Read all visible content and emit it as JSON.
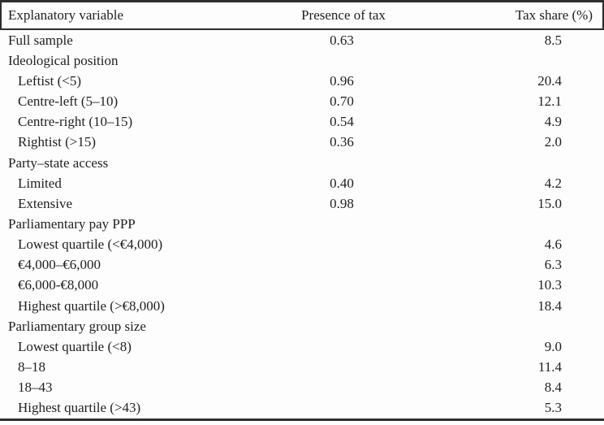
{
  "table": {
    "columns": [
      {
        "label": "Explanatory variable",
        "align": "left"
      },
      {
        "label": "Presence of tax",
        "align": "center"
      },
      {
        "label": "Tax share (%)",
        "align": "right"
      }
    ],
    "rows": [
      {
        "label": "Full sample",
        "indent": false,
        "presence": "0.63",
        "share": "8.5"
      },
      {
        "label": "Ideological position",
        "indent": false,
        "presence": "",
        "share": ""
      },
      {
        "label": "Leftist (<5)",
        "indent": true,
        "presence": "0.96",
        "share": "20.4"
      },
      {
        "label": "Centre-left (5–10)",
        "indent": true,
        "presence": "0.70",
        "share": "12.1"
      },
      {
        "label": "Centre-right (10–15)",
        "indent": true,
        "presence": "0.54",
        "share": "4.9"
      },
      {
        "label": "Rightist (>15)",
        "indent": true,
        "presence": "0.36",
        "share": "2.0"
      },
      {
        "label": "Party–state access",
        "indent": false,
        "presence": "",
        "share": ""
      },
      {
        "label": "Limited",
        "indent": true,
        "presence": "0.40",
        "share": "4.2"
      },
      {
        "label": "Extensive",
        "indent": true,
        "presence": "0.98",
        "share": "15.0"
      },
      {
        "label": "Parliamentary pay PPP",
        "indent": false,
        "presence": "",
        "share": ""
      },
      {
        "label": "Lowest quartile (<€4,000)",
        "indent": true,
        "presence": "",
        "share": "4.6"
      },
      {
        "label": "€4,000–€6,000",
        "indent": true,
        "presence": "",
        "share": "6.3"
      },
      {
        "label": "€6,000-€8,000",
        "indent": true,
        "presence": "",
        "share": "10.3"
      },
      {
        "label": "Highest quartile (>€8,000)",
        "indent": true,
        "presence": "",
        "share": "18.4"
      },
      {
        "label": "Parliamentary group size",
        "indent": false,
        "presence": "",
        "share": ""
      },
      {
        "label": "Lowest quartile (<8)",
        "indent": true,
        "presence": "",
        "share": "9.0"
      },
      {
        "label": "8–18",
        "indent": true,
        "presence": "",
        "share": "11.4"
      },
      {
        "label": "18–43",
        "indent": true,
        "presence": "",
        "share": "8.4"
      },
      {
        "label": "Highest quartile (>43)",
        "indent": true,
        "presence": "",
        "share": "5.3"
      }
    ]
  },
  "colors": {
    "text": "#1f1f1f",
    "rule": "#2e2e2e",
    "background": "#fdfdfd"
  }
}
